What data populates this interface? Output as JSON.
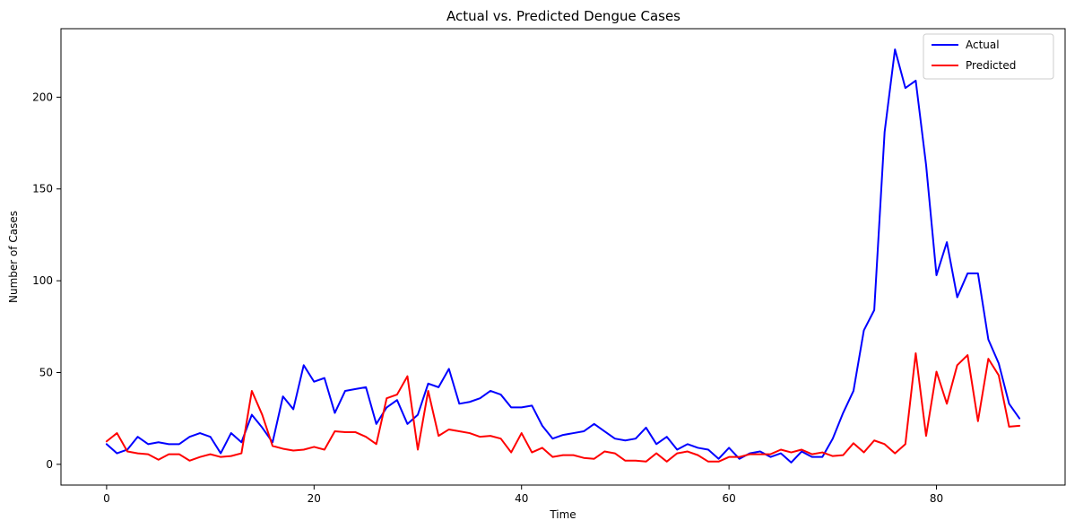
{
  "chart_data": {
    "type": "line",
    "title": "Actual vs. Predicted Dengue Cases",
    "xlabel": "Time",
    "ylabel": "Number of Cases",
    "xlim": [
      -4.4,
      92.4
    ],
    "ylim": [
      -11.3,
      237.3
    ],
    "xticks": [
      0,
      20,
      40,
      60,
      80
    ],
    "yticks": [
      0,
      50,
      100,
      150,
      200
    ],
    "grid": false,
    "legend": "top-right",
    "x": [
      0,
      1,
      2,
      3,
      4,
      5,
      6,
      7,
      8,
      9,
      10,
      11,
      12,
      13,
      14,
      15,
      16,
      17,
      18,
      19,
      20,
      21,
      22,
      23,
      24,
      25,
      26,
      27,
      28,
      29,
      30,
      31,
      32,
      33,
      34,
      35,
      36,
      37,
      38,
      39,
      40,
      41,
      42,
      43,
      44,
      45,
      46,
      47,
      48,
      49,
      50,
      51,
      52,
      53,
      54,
      55,
      56,
      57,
      58,
      59,
      60,
      61,
      62,
      63,
      64,
      65,
      66,
      67,
      68,
      69,
      70,
      71,
      72,
      73,
      74,
      75,
      76,
      77,
      78,
      79,
      80,
      81,
      82,
      83,
      84,
      85,
      86,
      87,
      88
    ],
    "series": [
      {
        "name": "Actual",
        "color": "#0000ff",
        "values": [
          11,
          6,
          8,
          15,
          11,
          12,
          11,
          11,
          15,
          17,
          15,
          6,
          17,
          12,
          27,
          20,
          12,
          37,
          30,
          54,
          45,
          47,
          28,
          40,
          41,
          42,
          22,
          31,
          35,
          22,
          27,
          44,
          42,
          52,
          33,
          34,
          36,
          40,
          38,
          31,
          31,
          32,
          21,
          14,
          16,
          17,
          18,
          22,
          18,
          14,
          13,
          14,
          20,
          11,
          15,
          8,
          11,
          9,
          8,
          3,
          9,
          3,
          6,
          7,
          4,
          6,
          1,
          7,
          4,
          4,
          14,
          28,
          40,
          73,
          84,
          181,
          226,
          205,
          209,
          163,
          103,
          121,
          91,
          104,
          104,
          68,
          55,
          33,
          25
        ]
      },
      {
        "name": "Predicted",
        "color": "#ff0000",
        "values": [
          12.5,
          17,
          7,
          6,
          5.5,
          2.5,
          5.5,
          5.5,
          2,
          4,
          5.5,
          4,
          4.5,
          6,
          40,
          27,
          10,
          8.5,
          7.5,
          8,
          9.5,
          8,
          18,
          17.5,
          17.5,
          15,
          11,
          36,
          38,
          48,
          8,
          40,
          15.5,
          19,
          18,
          17,
          15,
          15.5,
          14,
          6.5,
          17,
          6.5,
          9,
          4,
          5,
          5,
          3.5,
          3,
          7,
          6,
          2,
          2,
          1.5,
          6,
          1.5,
          6,
          7,
          5,
          1.5,
          1.5,
          4,
          4,
          5.5,
          5.5,
          5.5,
          8,
          6.5,
          8,
          5.5,
          6.5,
          4.5,
          5,
          11.5,
          6.5,
          13,
          11,
          6,
          11,
          60.5,
          15.5,
          50.5,
          33,
          54,
          59.5,
          23.5,
          57.5,
          48.5,
          20.5,
          21
        ]
      }
    ]
  }
}
